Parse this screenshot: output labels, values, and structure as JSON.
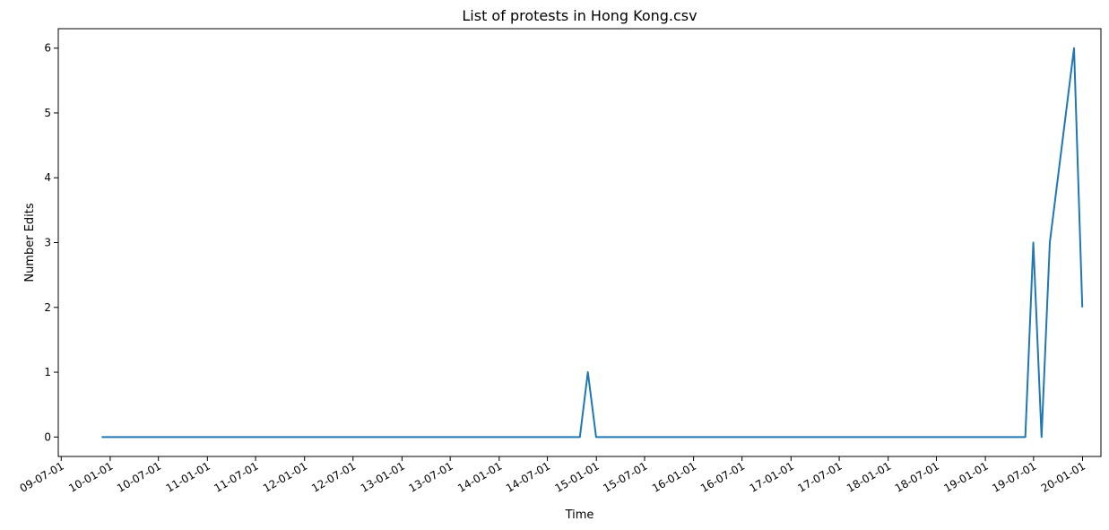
{
  "chart_data": {
    "type": "line",
    "title": "List of protests in Hong Kong.csv",
    "xlabel": "Time",
    "ylabel": "Number Edits",
    "x_tick_labels": [
      "09-07-01",
      "10-01-01",
      "10-07-01",
      "11-01-01",
      "11-07-01",
      "12-01-01",
      "12-07-01",
      "13-01-01",
      "13-07-01",
      "14-01-01",
      "14-07-01",
      "15-01-01",
      "15-07-01",
      "16-01-01",
      "16-07-01",
      "17-01-01",
      "17-07-01",
      "18-01-01",
      "18-07-01",
      "19-01-01",
      "19-07-01",
      "20-01-01"
    ],
    "x_tick_dates": [
      "2009-07-01",
      "2010-01-01",
      "2010-07-01",
      "2011-01-01",
      "2011-07-01",
      "2012-01-01",
      "2012-07-01",
      "2013-01-01",
      "2013-07-01",
      "2014-01-01",
      "2014-07-01",
      "2015-01-01",
      "2015-07-01",
      "2016-01-01",
      "2016-07-01",
      "2017-01-01",
      "2017-07-01",
      "2018-01-01",
      "2018-07-01",
      "2019-01-01",
      "2019-07-01",
      "2020-01-01"
    ],
    "y_ticks": [
      0,
      1,
      2,
      3,
      4,
      5,
      6
    ],
    "xlim": [
      "2009-06-20",
      "2020-03-10"
    ],
    "ylim": [
      -0.3,
      6.3
    ],
    "grid": false,
    "color": "#1f77b4",
    "series": [
      {
        "x": [
          "2009-11-30",
          "2014-10-31",
          "2014-11-30",
          "2014-12-31",
          "2019-05-31",
          "2019-06-30",
          "2019-07-31",
          "2019-08-31",
          "2019-11-30",
          "2019-12-31"
        ],
        "values": [
          0,
          0,
          1,
          0,
          0,
          3,
          0,
          3,
          6,
          2
        ]
      }
    ]
  }
}
